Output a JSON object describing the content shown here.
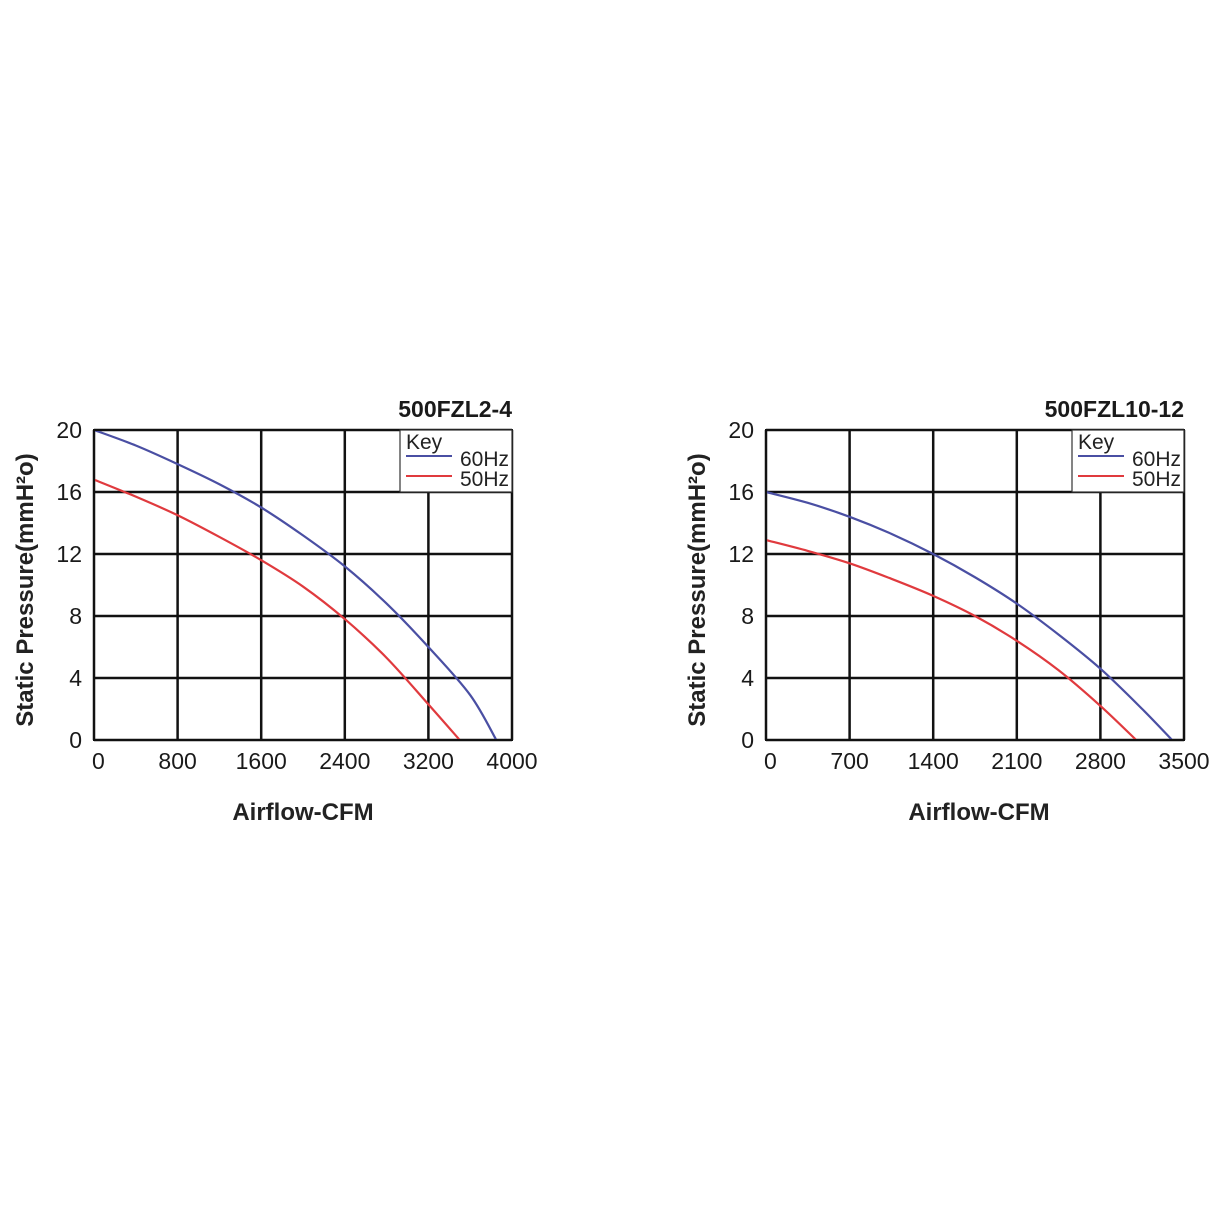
{
  "chart_data": [
    {
      "type": "line",
      "title": "500FZL2-4",
      "xlabel": "Airflow-CFM",
      "ylabel": "Static Pressure(mmH²o)",
      "xlim": [
        0,
        4000
      ],
      "ylim": [
        0,
        20
      ],
      "xticks": [
        "0",
        "800",
        "1600",
        "2400",
        "3200",
        "4000"
      ],
      "yticks": [
        "0",
        "4",
        "8",
        "12",
        "16",
        "20"
      ],
      "grid": true,
      "legend": {
        "title": "Key",
        "placement": "top-right"
      },
      "series": [
        {
          "name": "60Hz",
          "color": "#4a4fa3",
          "x": [
            0,
            400,
            800,
            1200,
            1600,
            2000,
            2400,
            2800,
            3200,
            3600,
            3850
          ],
          "y": [
            20,
            19.0,
            17.8,
            16.5,
            15.0,
            13.2,
            11.2,
            8.8,
            6.0,
            2.9,
            0
          ]
        },
        {
          "name": "50Hz",
          "color": "#e03a3e",
          "x": [
            0,
            400,
            800,
            1200,
            1600,
            2000,
            2400,
            2800,
            3200,
            3500
          ],
          "y": [
            16.8,
            15.7,
            14.5,
            13.1,
            11.6,
            9.9,
            7.8,
            5.3,
            2.3,
            0
          ]
        }
      ]
    },
    {
      "type": "line",
      "title": "500FZL10-12",
      "xlabel": "Airflow-CFM",
      "ylabel": "Static Pressure(mmH²o)",
      "xlim": [
        0,
        3500
      ],
      "ylim": [
        0,
        20
      ],
      "xticks": [
        "0",
        "700",
        "1400",
        "2100",
        "2800",
        "3500"
      ],
      "yticks": [
        "0",
        "4",
        "8",
        "12",
        "16",
        "20"
      ],
      "grid": true,
      "legend": {
        "title": "Key",
        "placement": "top-right"
      },
      "series": [
        {
          "name": "60Hz",
          "color": "#4a4fa3",
          "x": [
            0,
            350,
            700,
            1050,
            1400,
            1750,
            2100,
            2450,
            2800,
            3150,
            3400
          ],
          "y": [
            16,
            15.3,
            14.4,
            13.3,
            12.0,
            10.5,
            8.8,
            6.8,
            4.6,
            2.0,
            0
          ]
        },
        {
          "name": "50Hz",
          "color": "#e03a3e",
          "x": [
            0,
            350,
            700,
            1050,
            1400,
            1750,
            2100,
            2450,
            2800,
            3100
          ],
          "y": [
            12.9,
            12.2,
            11.4,
            10.4,
            9.3,
            8.0,
            6.4,
            4.5,
            2.2,
            0
          ]
        }
      ]
    }
  ]
}
